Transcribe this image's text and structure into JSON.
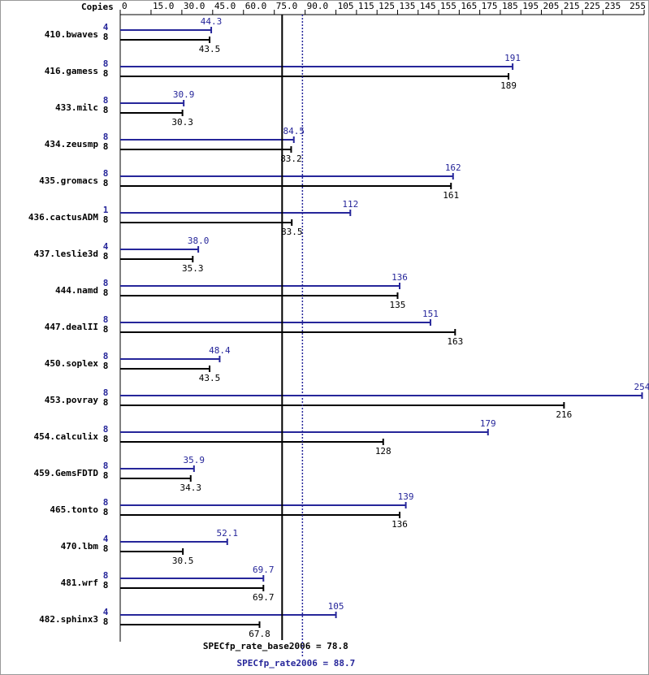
{
  "chart_data": {
    "type": "bar",
    "orientation": "horizontal",
    "x_axis_label": "Copies",
    "xlim": [
      0,
      255
    ],
    "xticks": [
      0,
      {
        "value": 15,
        "label": "15.0"
      },
      {
        "value": 30,
        "label": "30.0"
      },
      {
        "value": 45,
        "label": "45.0"
      },
      {
        "value": 60,
        "label": "60.0"
      },
      {
        "value": 75,
        "label": "75.0"
      },
      {
        "value": 90,
        "label": "90.0"
      },
      105,
      115,
      125,
      135,
      145,
      155,
      165,
      175,
      185,
      195,
      205,
      215,
      225,
      235,
      255
    ],
    "categories": [
      "410.bwaves",
      "416.gamess",
      "433.milc",
      "434.zeusmp",
      "435.gromacs",
      "436.cactusADM",
      "437.leslie3d",
      "444.namd",
      "447.dealII",
      "450.soplex",
      "453.povray",
      "454.calculix",
      "459.GemsFDTD",
      "465.tonto",
      "470.lbm",
      "481.wrf",
      "482.sphinx3"
    ],
    "series": [
      {
        "name": "peak",
        "color": "#26269a",
        "copies": [
          4,
          8,
          8,
          8,
          8,
          1,
          4,
          8,
          8,
          8,
          8,
          8,
          8,
          8,
          4,
          8,
          4
        ],
        "values": [
          44.3,
          191,
          30.9,
          84.5,
          162,
          112,
          38.0,
          136,
          151,
          48.4,
          254,
          179,
          35.9,
          139,
          52.1,
          69.7,
          105
        ],
        "value_labels": [
          "44.3",
          "191",
          "30.9",
          "84.5",
          "162",
          "112",
          "38.0",
          "136",
          "151",
          "48.4",
          "254",
          "179",
          "35.9",
          "139",
          "52.1",
          "69.7",
          "105"
        ]
      },
      {
        "name": "base",
        "color": "#000000",
        "copies": [
          8,
          8,
          8,
          8,
          8,
          8,
          8,
          8,
          8,
          8,
          8,
          8,
          8,
          8,
          8,
          8,
          8
        ],
        "values": [
          43.5,
          189,
          30.3,
          83.2,
          161,
          83.5,
          35.3,
          135,
          163,
          43.5,
          216,
          128,
          34.3,
          136,
          30.5,
          69.7,
          67.8
        ],
        "value_labels": [
          "43.5",
          "189",
          "30.3",
          "83.2",
          "161",
          "83.5",
          "35.3",
          "135",
          "163",
          "43.5",
          "216",
          "128",
          "34.3",
          "136",
          "30.5",
          "69.7",
          "67.8"
        ]
      }
    ],
    "reference_lines": [
      {
        "label": "SPECfp_rate_base2006 = 78.8",
        "value": 78.8,
        "color": "#000000",
        "style": "solid"
      },
      {
        "label": "SPECfp_rate2006 = 88.7",
        "value": 88.7,
        "color": "#26269a",
        "style": "dotted"
      }
    ]
  }
}
